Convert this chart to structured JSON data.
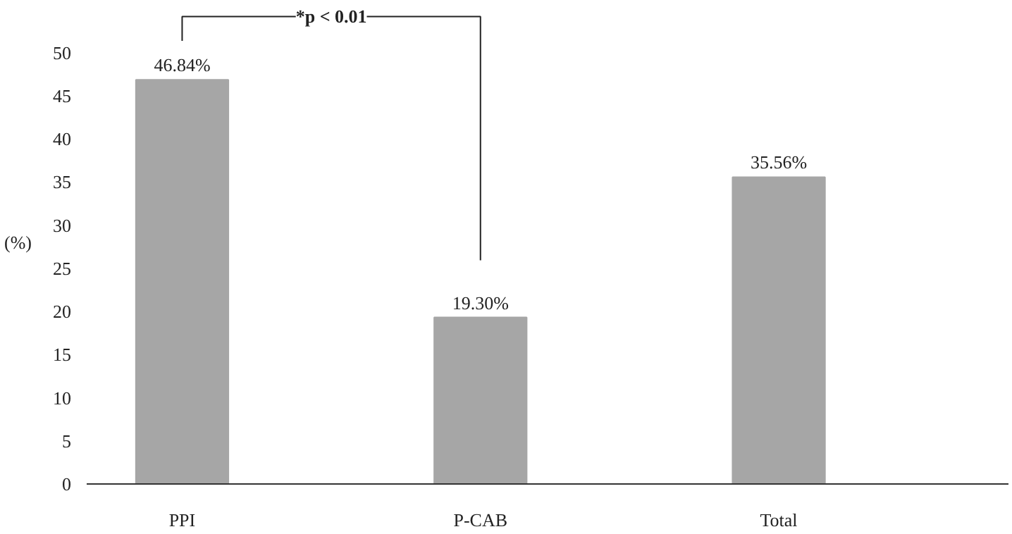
{
  "chart_data": {
    "type": "bar",
    "categories": [
      "PPI",
      "P-CAB",
      "Total"
    ],
    "values": [
      46.84,
      19.3,
      35.56
    ],
    "color": "#a6a6a6",
    "value_labels": [
      "46.84%",
      "19.30%",
      "35.56%"
    ],
    "ylabel": "(%)",
    "ylim": [
      0,
      56
    ],
    "yticks": [
      0,
      5,
      10,
      15,
      20,
      25,
      30,
      35,
      40,
      45,
      50
    ],
    "grid": false,
    "annotations": [
      "*p < 0.01"
    ]
  }
}
